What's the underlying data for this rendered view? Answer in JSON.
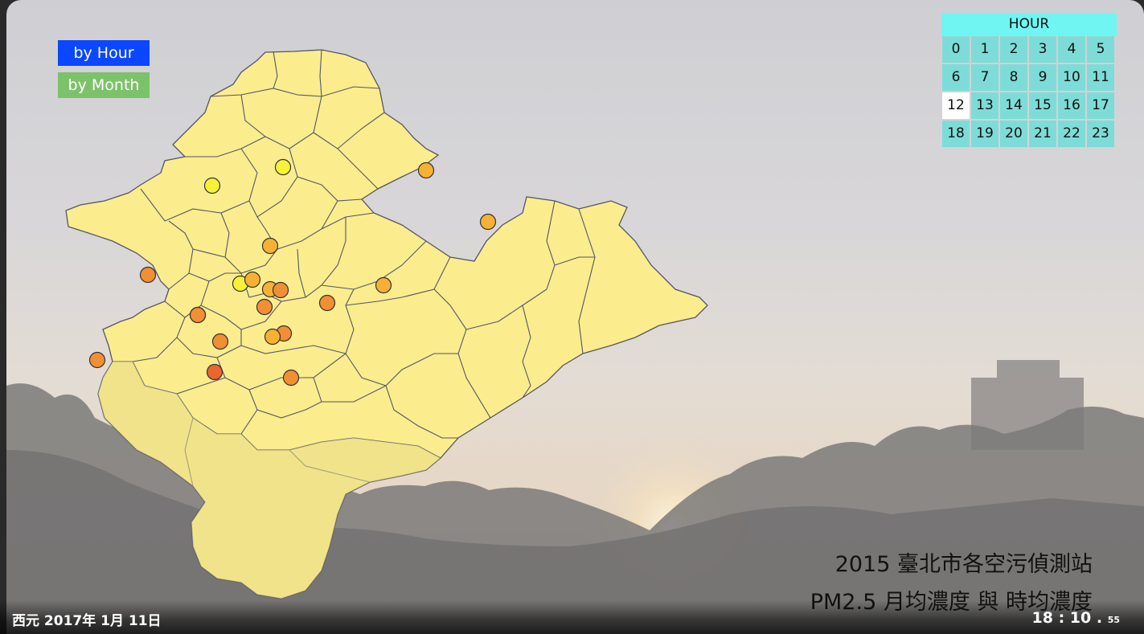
{
  "controls": {
    "by_hour": {
      "label": "by Hour",
      "color": "#0a47ff"
    },
    "by_month": {
      "label": "by Month",
      "color": "#7cc26a"
    }
  },
  "hour_panel": {
    "title": "HOUR",
    "hours": [
      "0",
      "1",
      "2",
      "3",
      "4",
      "5",
      "6",
      "7",
      "8",
      "9",
      "10",
      "11",
      "12",
      "13",
      "14",
      "15",
      "16",
      "17",
      "18",
      "19",
      "20",
      "21",
      "22",
      "23"
    ],
    "selected": "12",
    "title_bg": "#6ff5f2",
    "cell_bg": "#7edcd8"
  },
  "titles": {
    "line1": "2015 臺北市各空污偵測站",
    "line2": "PM2.5 月均濃度 與 時均濃度"
  },
  "footer": {
    "date": "西元 2017年 1月 11日",
    "clock_main": "18 : 10 .",
    "clock_sec": "55"
  },
  "map": {
    "region_fill": "#fbec8e",
    "region_stroke": "#555566",
    "stations": [
      {
        "id": "s1",
        "level": 1
      },
      {
        "id": "s2",
        "level": 1
      },
      {
        "id": "s3",
        "level": 3
      },
      {
        "id": "s4",
        "level": 3
      },
      {
        "id": "s5",
        "level": 3
      },
      {
        "id": "s6",
        "level": 4
      },
      {
        "id": "s7",
        "level": 1
      },
      {
        "id": "s8",
        "level": 3
      },
      {
        "id": "s9",
        "level": 3
      },
      {
        "id": "s10",
        "level": 4
      },
      {
        "id": "s11",
        "level": 3
      },
      {
        "id": "s12",
        "level": 4
      },
      {
        "id": "s13",
        "level": 4
      },
      {
        "id": "s14",
        "level": 3
      },
      {
        "id": "s15",
        "level": 4
      },
      {
        "id": "s16",
        "level": 3
      },
      {
        "id": "s17",
        "level": 4
      },
      {
        "id": "s18",
        "level": 4
      },
      {
        "id": "s19",
        "level": 4
      },
      {
        "id": "s20",
        "level": 5
      },
      {
        "id": "s21",
        "level": 4
      }
    ],
    "level_colors": {
      "1": "#f7f13a",
      "3": "#f6b134",
      "4": "#f08f33",
      "5": "#e96532"
    }
  }
}
